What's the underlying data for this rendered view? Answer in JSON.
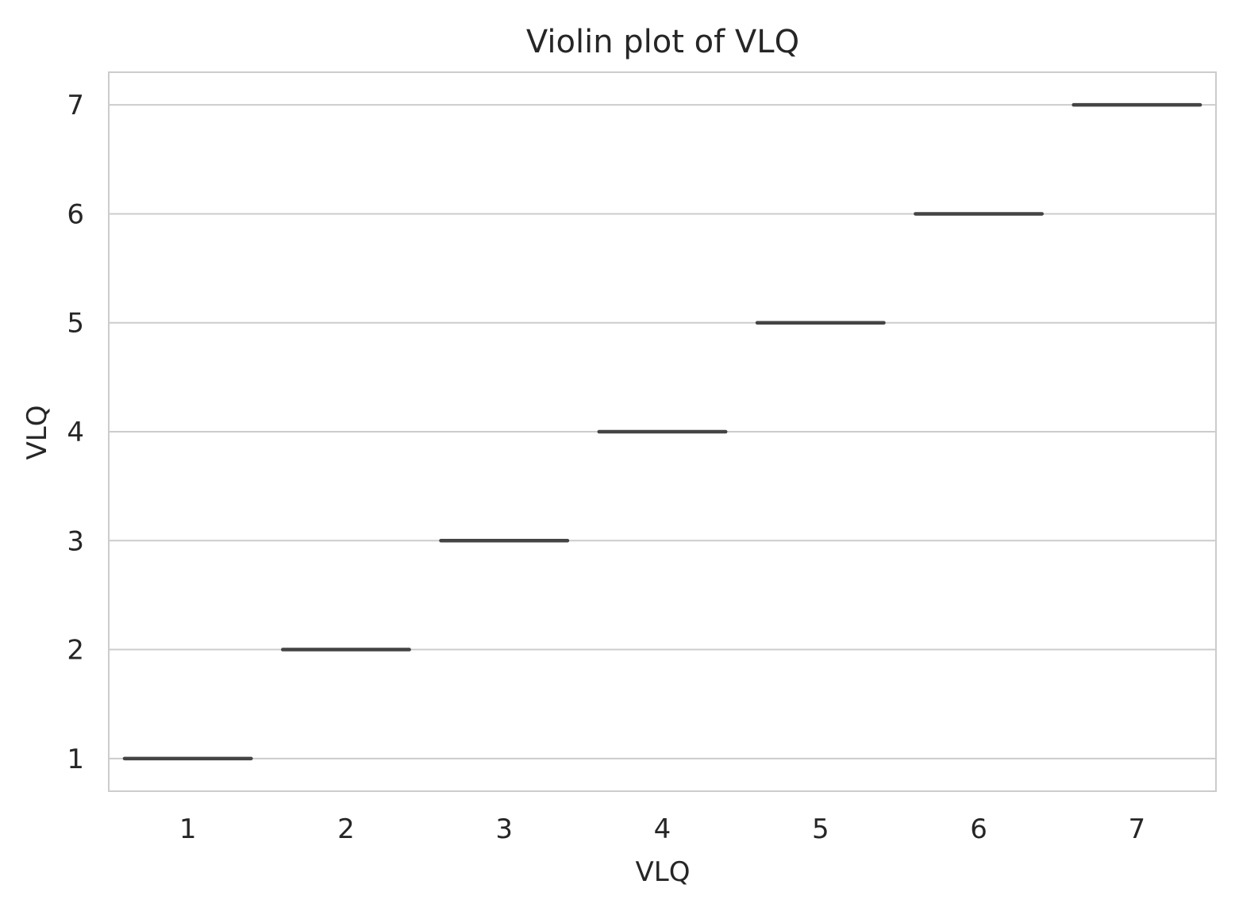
{
  "chart_data": {
    "type": "violin",
    "title": "Violin plot of VLQ",
    "xlabel": "VLQ",
    "ylabel": "VLQ",
    "categories": [
      "1",
      "2",
      "3",
      "4",
      "5",
      "6",
      "7"
    ],
    "values": [
      1,
      2,
      3,
      4,
      5,
      6,
      7
    ],
    "y_ticks": [
      "1",
      "2",
      "3",
      "4",
      "5",
      "6",
      "7"
    ],
    "ylim": [
      0.7,
      7.3
    ],
    "grid": "horizontal",
    "colors": {
      "grid": "#cccccc",
      "frame": "#cccccc",
      "mark": "#444444",
      "text": "#262626"
    }
  }
}
